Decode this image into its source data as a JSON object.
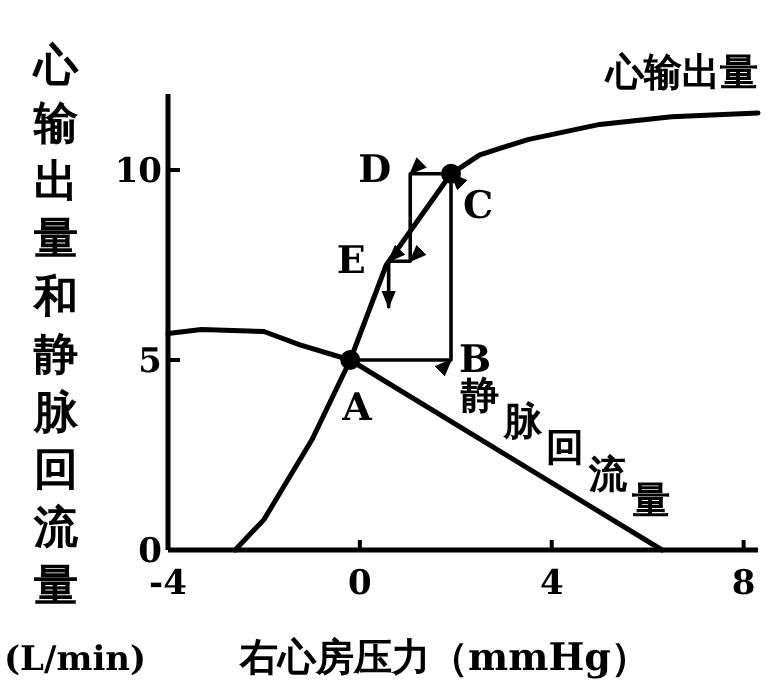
{
  "chart_data": {
    "type": "line",
    "xlabel": "右心房压力（mmHg）",
    "ylabel": "心输出量和静脉回流量",
    "xlim": [
      -4,
      8.3
    ],
    "ylim": [
      0,
      12
    ],
    "xticks": [
      -4,
      0,
      4,
      8
    ],
    "yticks": [
      0,
      5,
      10
    ],
    "grid": false,
    "legend": false,
    "marker": "none",
    "line_style": "solid",
    "series": [
      {
        "name": "心输出量",
        "color": "#000000",
        "x": [
          -2.6,
          -2,
          -1,
          -0.2,
          0.55,
          1.9,
          2.5,
          3.5,
          5,
          6.5,
          8.3
        ],
        "values": [
          0,
          0.8,
          2.9,
          5,
          7.5,
          9.9,
          10.4,
          10.8,
          11.2,
          11.4,
          11.5
        ]
      },
      {
        "name": "静脉回流量",
        "color": "#000000",
        "x": [
          -4,
          -3.3,
          -2,
          -1.25,
          -0.2,
          6.3
        ],
        "values": [
          5.7,
          5.8,
          5.75,
          5.4,
          5,
          0
        ]
      },
      {
        "type": "line",
        "color": "#000000",
        "x": [
          -0.2,
          1.9,
          1.9,
          1.05,
          1.05,
          0.6,
          0.6
        ],
        "values": [
          5,
          5,
          9.9,
          9.9,
          7.6,
          7.6,
          6.4
        ]
      },
      {
        "type": "scatter",
        "color": "#000000",
        "marker": "circle",
        "x": [
          -0.2,
          1.9
        ],
        "values": [
          5,
          9.9
        ]
      }
    ],
    "annotations": [
      {
        "text": "A",
        "x": -0.2,
        "y": 5
      },
      {
        "text": "B",
        "x": 1.9,
        "y": 5
      },
      {
        "text": "C",
        "x": 1.9,
        "y": 9.9
      },
      {
        "text": "D",
        "x": 1.05,
        "y": 9.9
      },
      {
        "text": "E",
        "x": 0.6,
        "y": 7.6
      },
      "(L/min)"
    ]
  }
}
